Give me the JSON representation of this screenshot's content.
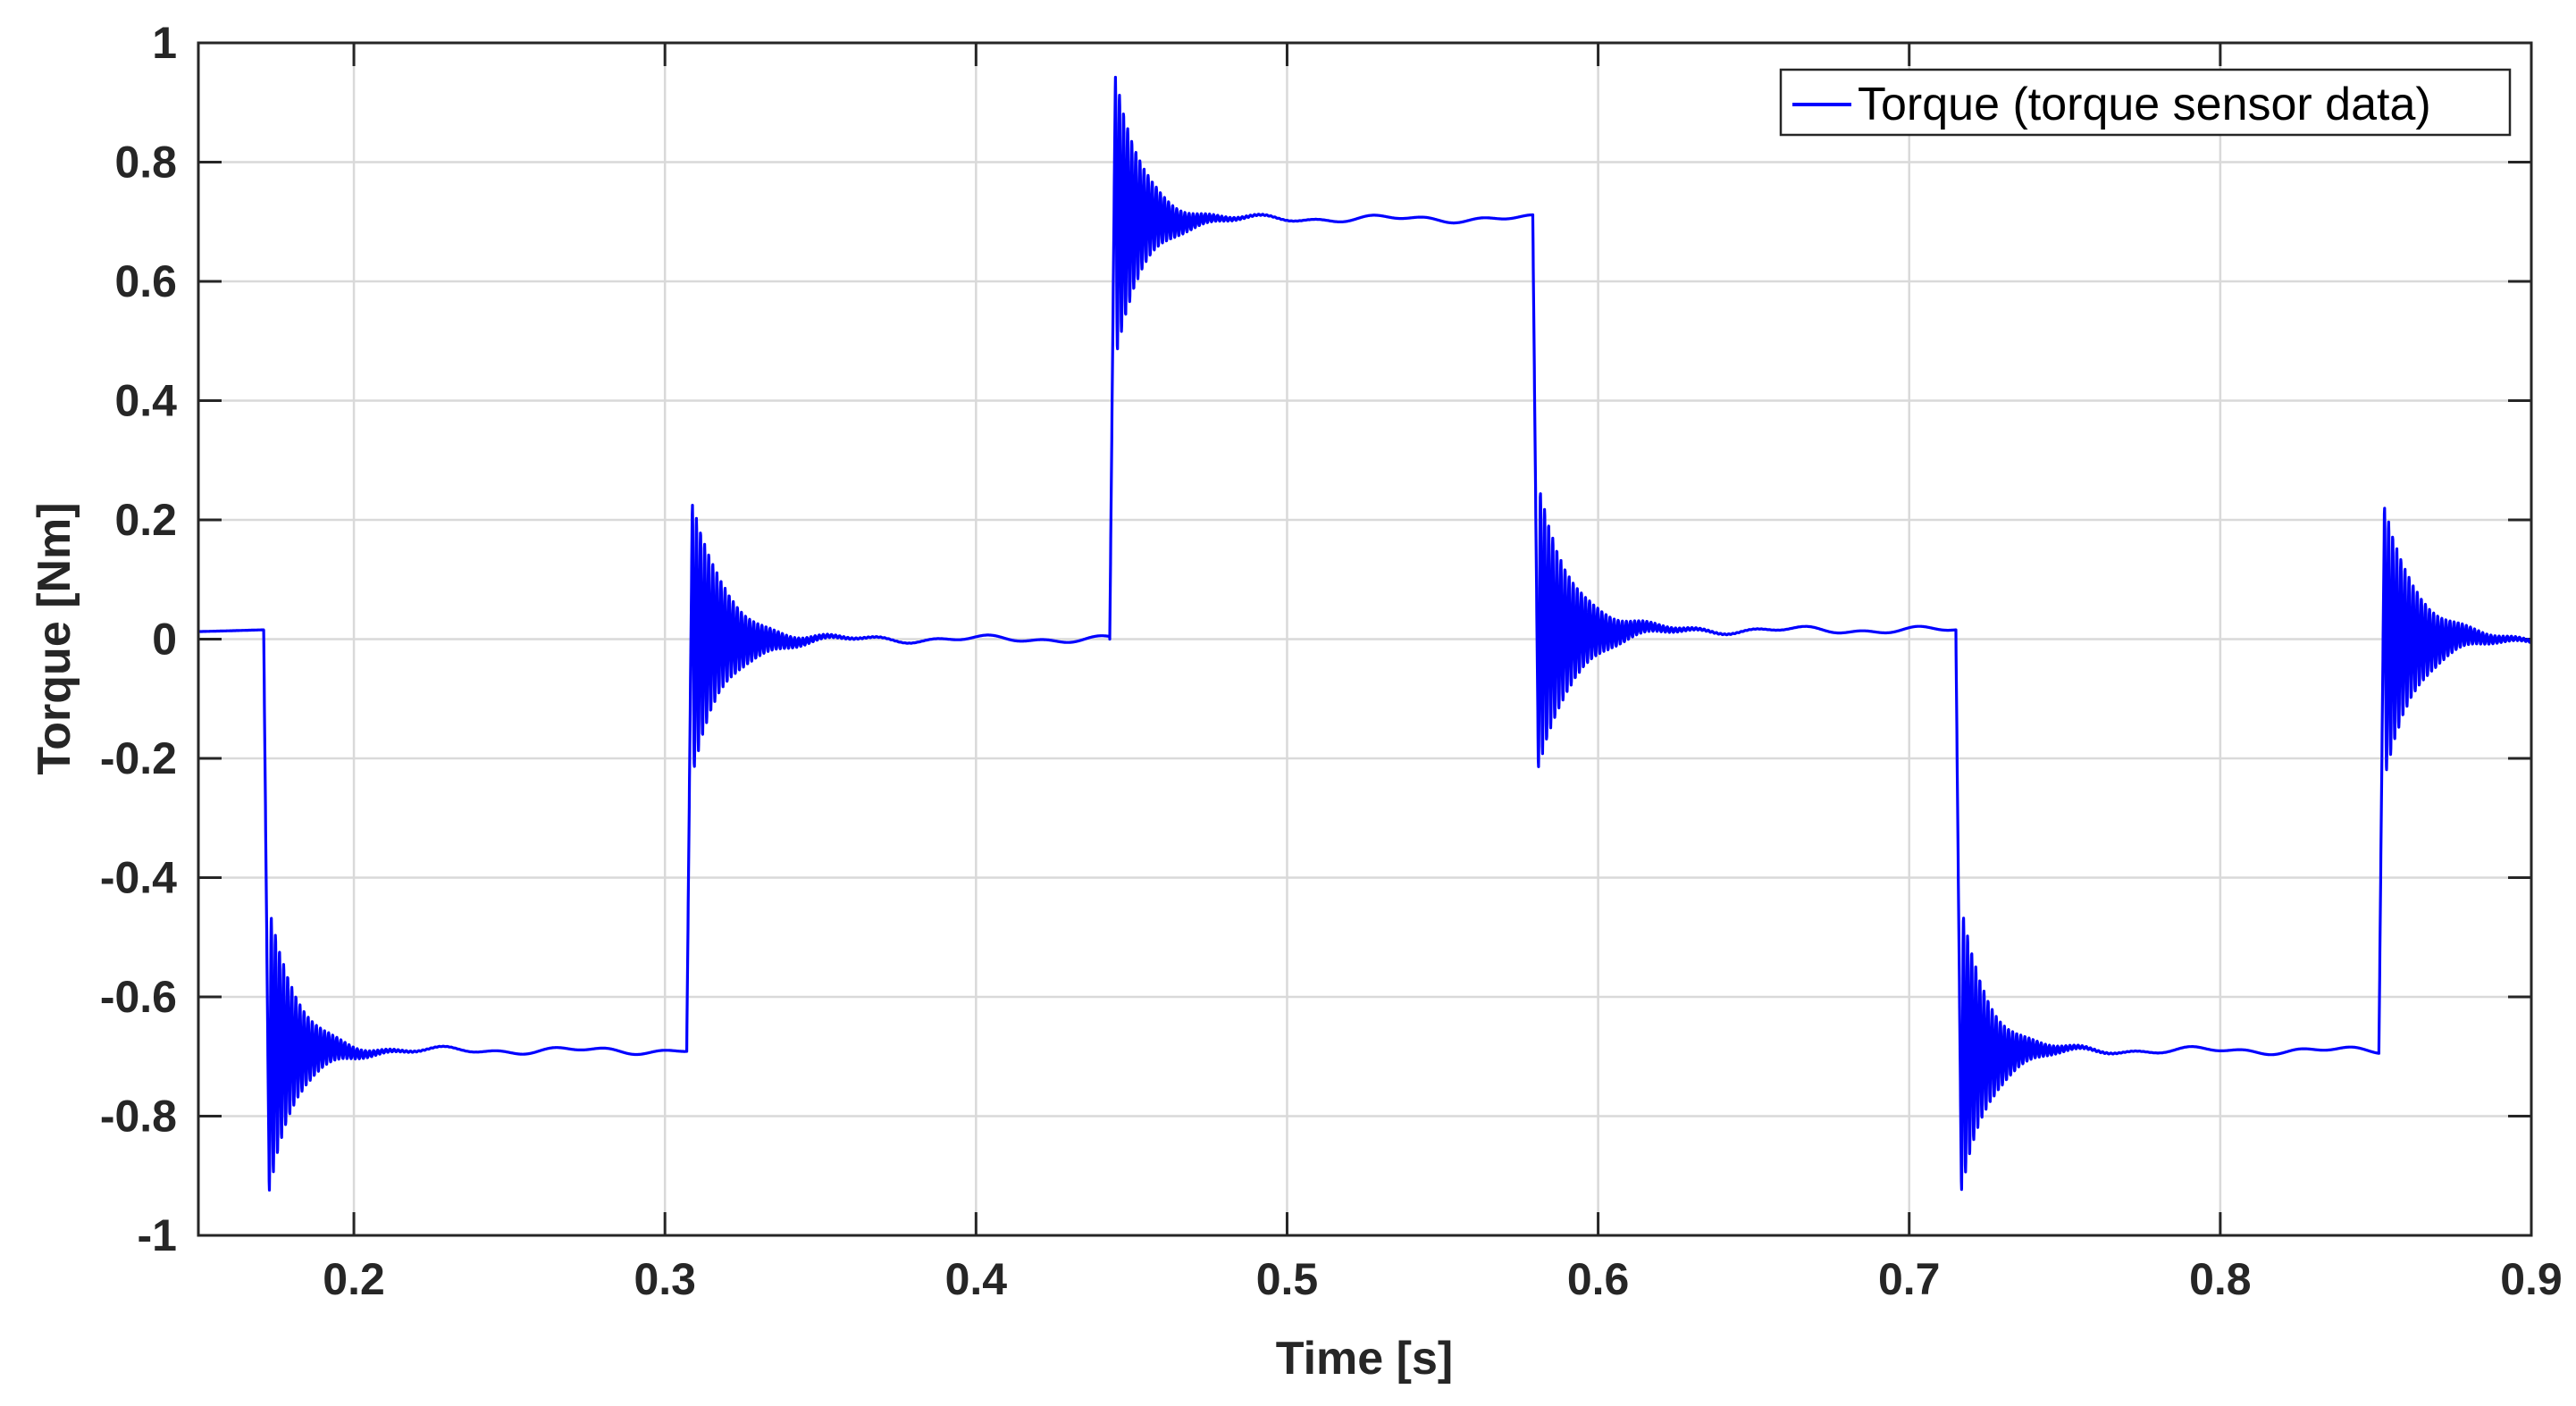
{
  "chart_data": {
    "type": "line",
    "xlabel": "Time [s]",
    "ylabel": "Torque [Nm]",
    "xlim": [
      0.15,
      0.9
    ],
    "ylim": [
      -1,
      1
    ],
    "x_ticks": [
      0.2,
      0.3,
      0.4,
      0.5,
      0.6,
      0.7,
      0.8,
      0.9
    ],
    "x_tick_labels": [
      "0.2",
      "0.3",
      "0.4",
      "0.5",
      "0.6",
      "0.7",
      "0.8",
      "0.9"
    ],
    "y_ticks": [
      -1,
      -0.8,
      -0.6,
      -0.4,
      -0.2,
      0,
      0.2,
      0.4,
      0.6,
      0.8,
      1
    ],
    "y_tick_labels": [
      "-1",
      "-0.8",
      "-0.6",
      "-0.4",
      "-0.2",
      "0",
      "0.2",
      "0.4",
      "0.6",
      "0.8",
      "1"
    ],
    "grid": true,
    "legend_position": "top-right",
    "series": [
      {
        "name": "Torque (torque sensor data)",
        "color": "#0000ff",
        "segments": [
          {
            "t_start": 0.15,
            "t_end": 0.171,
            "from": 0.015,
            "level": 0.015,
            "peak": 0.015,
            "decay": 0.01
          },
          {
            "t_start": 0.171,
            "t_end": 0.307,
            "from": 0.015,
            "level": -0.69,
            "peak": -0.93,
            "decay": 0.0085
          },
          {
            "t_start": 0.307,
            "t_end": 0.443,
            "from": -0.69,
            "level": 0.0,
            "peak": 0.23,
            "decay": 0.01
          },
          {
            "t_start": 0.443,
            "t_end": 0.579,
            "from": 0.0,
            "level": 0.705,
            "peak": 0.945,
            "decay": 0.0085
          },
          {
            "t_start": 0.579,
            "t_end": 0.715,
            "from": 0.705,
            "level": 0.015,
            "peak": -0.225,
            "decay": 0.0105
          },
          {
            "t_start": 0.715,
            "t_end": 0.851,
            "from": 0.015,
            "level": -0.69,
            "peak": -0.93,
            "decay": 0.0085
          },
          {
            "t_start": 0.851,
            "t_end": 0.9,
            "from": -0.69,
            "level": 0.0,
            "peak": 0.23,
            "decay": 0.01
          }
        ],
        "ringing_frequency_hz": 760
      }
    ]
  }
}
